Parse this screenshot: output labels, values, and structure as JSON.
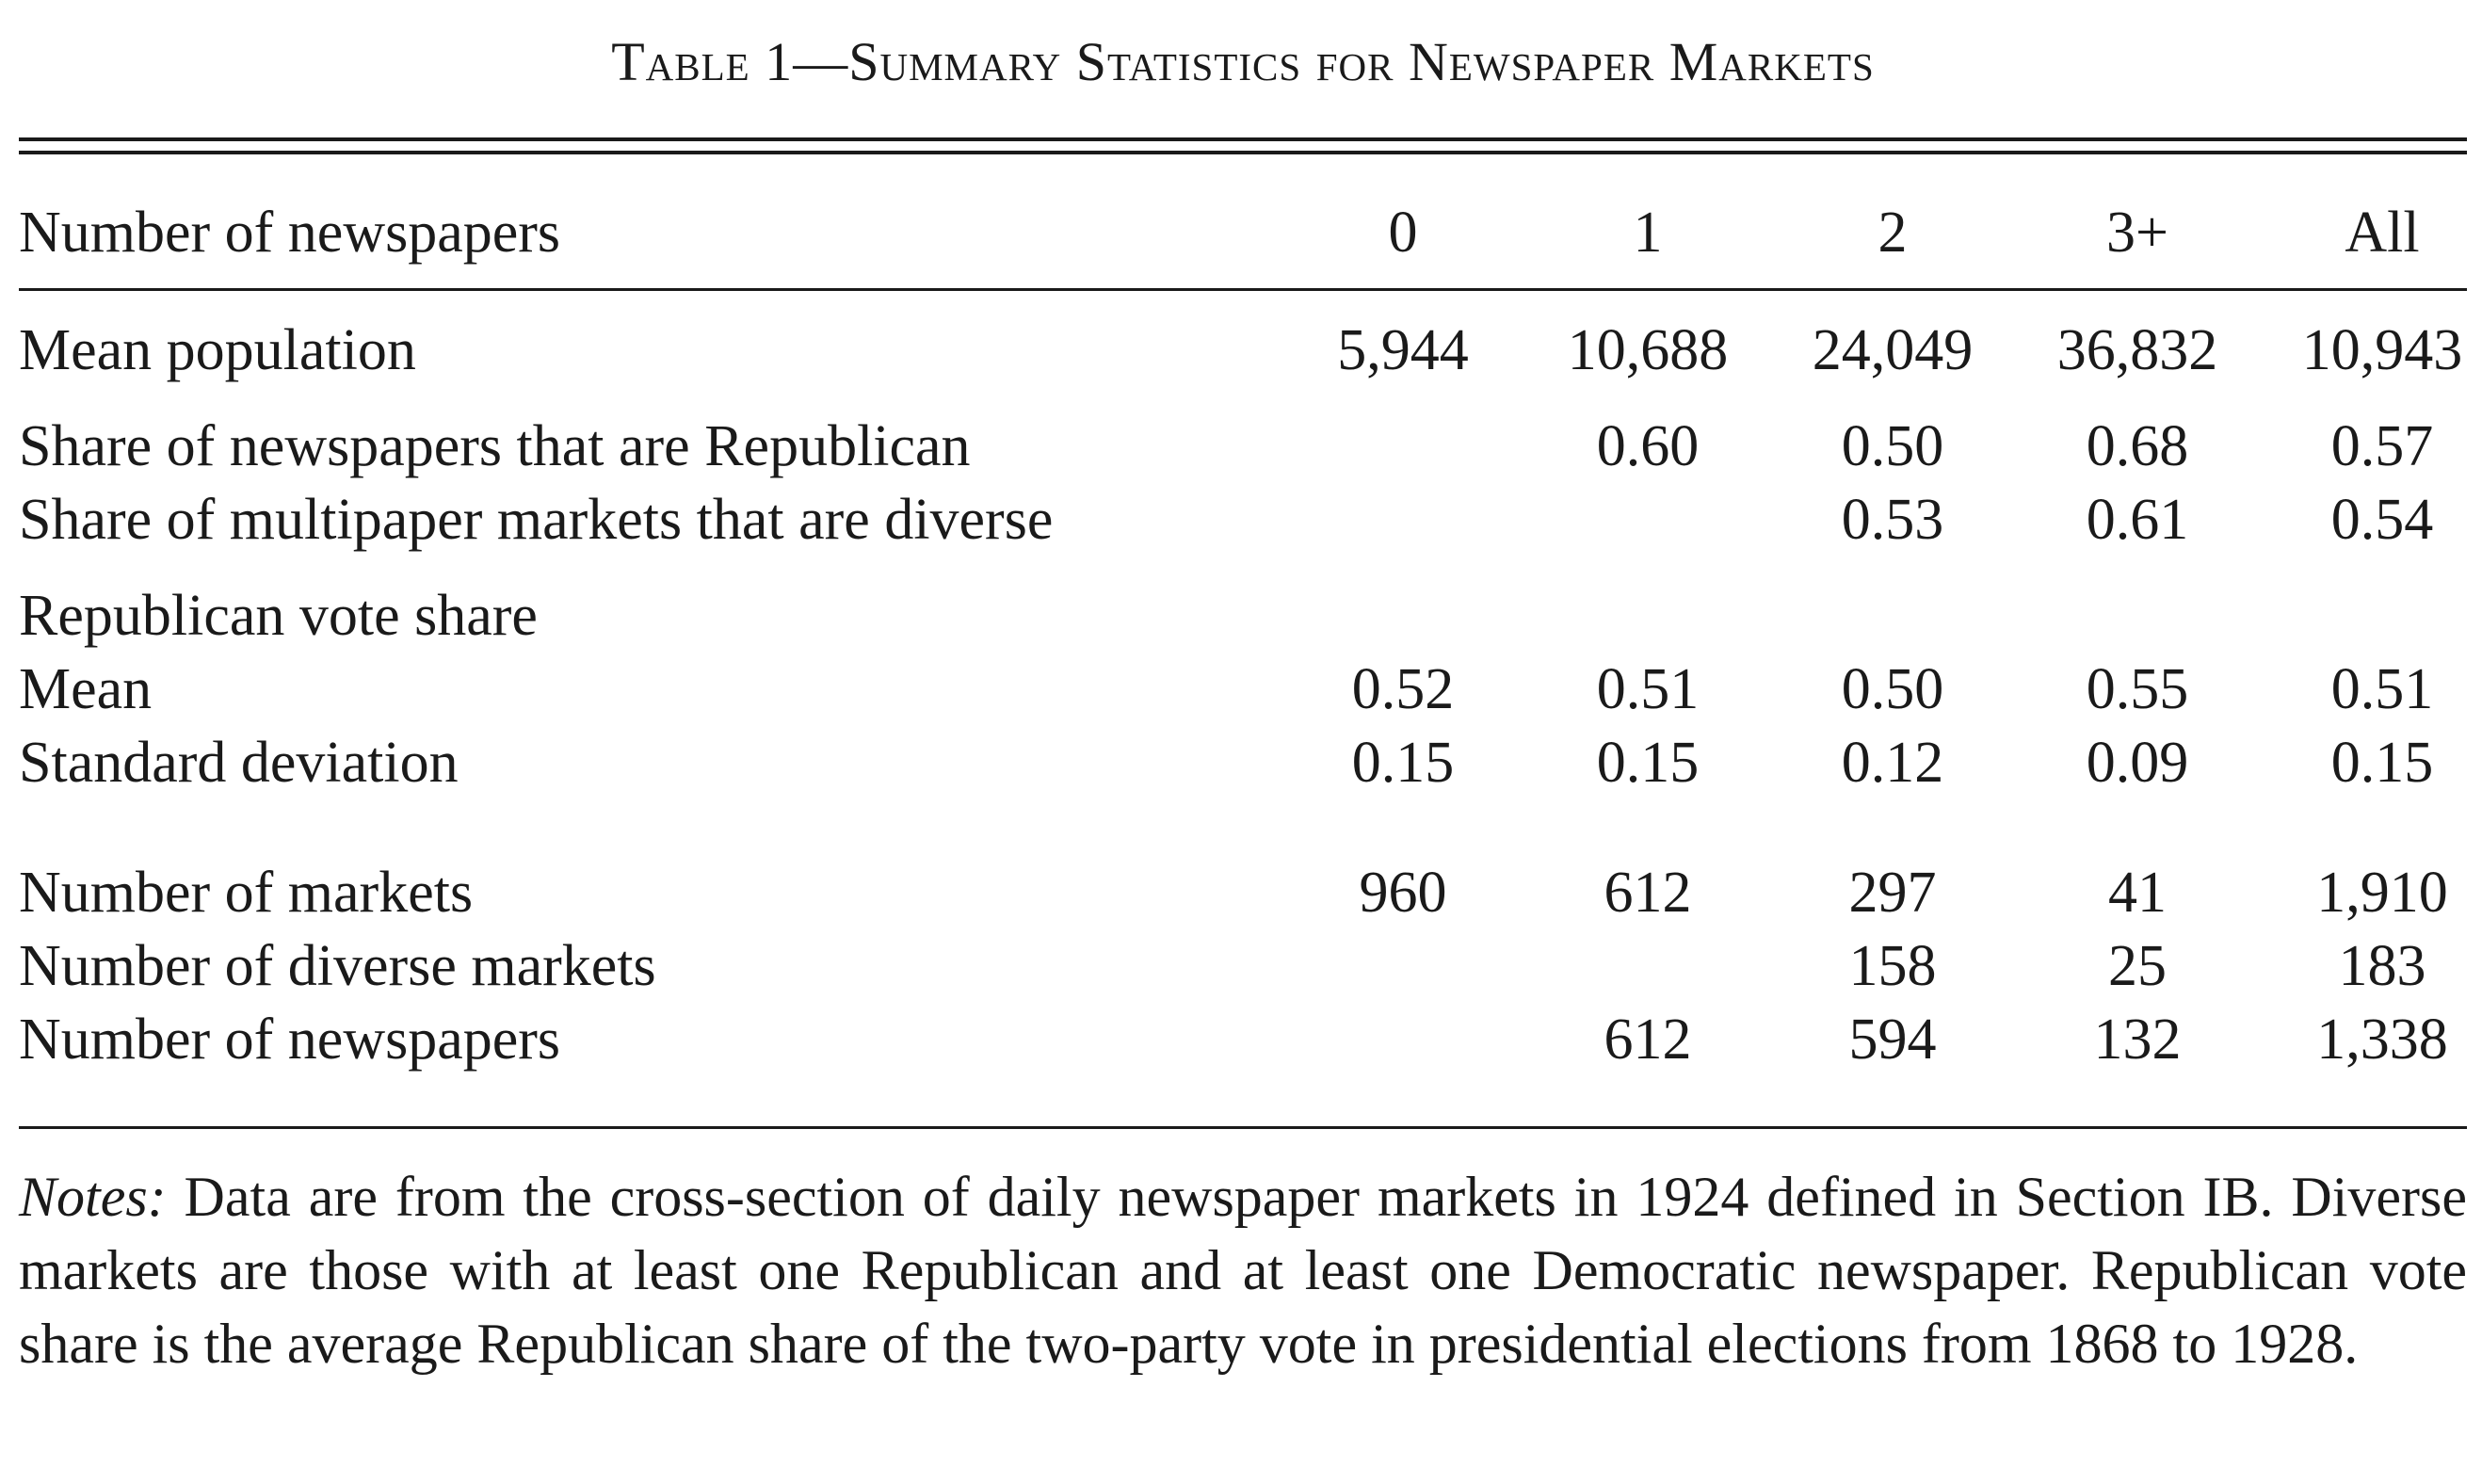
{
  "caption": {
    "prefix": "T",
    "small_caps_rest": "able 1—Summary Statistics for Newspaper Markets",
    "full": "Table 1—Summary Statistics for Newspaper Markets"
  },
  "table": {
    "header": {
      "label": "Number of newspapers",
      "columns": [
        "0",
        "1",
        "2",
        "3+",
        "All"
      ]
    },
    "rows": {
      "mean_population": {
        "label": "Mean population",
        "values": [
          "5,944",
          "10,688",
          "24,049",
          "36,832",
          "10,943"
        ]
      },
      "share_republican": {
        "label": "Share of newspapers that are Republican",
        "values": [
          "",
          "0.60",
          "0.50",
          "0.68",
          "0.57"
        ]
      },
      "share_diverse": {
        "label": "Share of multipaper markets that are diverse",
        "values": [
          "",
          "",
          "0.53",
          "0.61",
          "0.54"
        ]
      },
      "vote_share_heading": {
        "label": "Republican vote share"
      },
      "vote_mean": {
        "label": "Mean",
        "values": [
          "0.52",
          "0.51",
          "0.50",
          "0.55",
          "0.51"
        ]
      },
      "vote_sd": {
        "label": "Standard deviation",
        "values": [
          "0.15",
          "0.15",
          "0.12",
          "0.09",
          "0.15"
        ]
      },
      "num_markets": {
        "label": "Number of markets",
        "values": [
          "960",
          "612",
          "297",
          "41",
          "1,910"
        ]
      },
      "num_diverse": {
        "label": "Number of diverse markets",
        "values": [
          "",
          "",
          "158",
          "25",
          "183"
        ]
      },
      "num_newspapers": {
        "label": "Number of newspapers",
        "values": [
          "",
          "612",
          "594",
          "132",
          "1,338"
        ]
      }
    }
  },
  "notes": {
    "label": "Notes:",
    "text": " Data are from the cross-section of daily newspaper markets in 1924 defined in Section IB. Diverse markets are those with at least one Republican and at least one Democratic newspaper. Republican vote share is the average Republican share of the two-party vote in presidential elections from 1868 to 1928."
  }
}
